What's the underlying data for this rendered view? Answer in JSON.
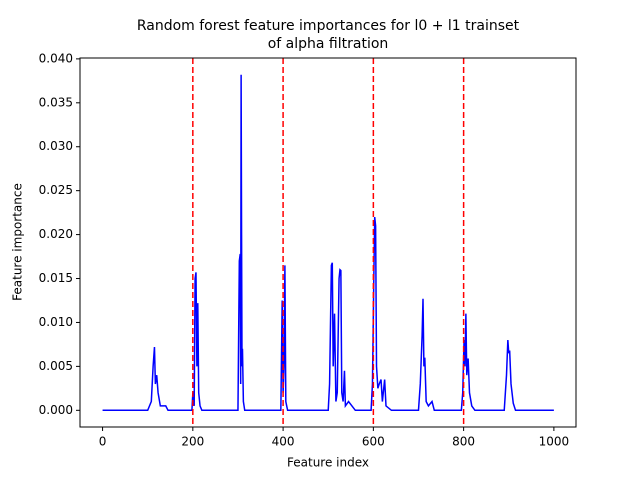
{
  "chart_data": {
    "type": "line",
    "title": [
      "Random forest feature importances for l0 + l1 trainset",
      "of alpha filtration"
    ],
    "x_label": "Feature index",
    "y_label": "Feature importance",
    "x": [
      0,
      100,
      108,
      112,
      115,
      117,
      120,
      123,
      128,
      140,
      145,
      198,
      200,
      203,
      205,
      207,
      209,
      211,
      213,
      216,
      220,
      300,
      303,
      305,
      306,
      307,
      308,
      309,
      310,
      312,
      315,
      395,
      398,
      400,
      402,
      404,
      406,
      410,
      500,
      503,
      507,
      509,
      511,
      514,
      517,
      520,
      524,
      526,
      528,
      530,
      533,
      536,
      538,
      545,
      560,
      595,
      598,
      601,
      603,
      605,
      607,
      610,
      613,
      617,
      620,
      625,
      628,
      640,
      700,
      704,
      708,
      710,
      712,
      714,
      717,
      722,
      730,
      735,
      795,
      798,
      801,
      803,
      805,
      807,
      810,
      813,
      818,
      825,
      890,
      895,
      898,
      900,
      902,
      905,
      910,
      915,
      1000
    ],
    "series": [
      {
        "color": "#0000ff",
        "values": [
          0,
          0,
          0.001,
          0.005,
          0.0072,
          0.003,
          0.004,
          0.002,
          0.0005,
          0.0005,
          0,
          0,
          0.002,
          0.0005,
          0.015,
          0.0157,
          0.005,
          0.0122,
          0.002,
          0.0005,
          0,
          0,
          0.017,
          0.0178,
          0.003,
          0.0382,
          0.02,
          0.005,
          0.007,
          0.001,
          0,
          0,
          0.0125,
          0.002,
          0.005,
          0.0165,
          0.001,
          0,
          0,
          0.003,
          0.0165,
          0.0168,
          0.005,
          0.011,
          0.001,
          0.002,
          0.015,
          0.016,
          0.0159,
          0.002,
          0.001,
          0.0045,
          0.0005,
          0.001,
          0,
          0,
          0.003,
          0.015,
          0.022,
          0.021,
          0.005,
          0.0025,
          0.003,
          0.0035,
          0.001,
          0.0035,
          0.0005,
          0,
          0,
          0.003,
          0.0085,
          0.0127,
          0.005,
          0.006,
          0.001,
          0.0005,
          0.001,
          0,
          0,
          0.002,
          0.008,
          0.005,
          0.011,
          0.004,
          0.0059,
          0.002,
          0.0005,
          0,
          0,
          0.004,
          0.008,
          0.0065,
          0.0068,
          0.003,
          0.0008,
          0,
          0
        ]
      }
    ],
    "vlines": [
      200,
      400,
      600,
      800
    ],
    "vline_color": "#ff0000",
    "xlim": [
      -50,
      1049
    ],
    "ylim": [
      -0.0019,
      0.0401
    ],
    "xticks": [
      0,
      200,
      400,
      600,
      800,
      1000
    ],
    "yticks": [
      {
        "value": 0,
        "label": "0.000"
      },
      {
        "value": 0.005,
        "label": "0.005"
      },
      {
        "value": 0.01,
        "label": "0.010"
      },
      {
        "value": 0.015,
        "label": "0.015"
      },
      {
        "value": 0.02,
        "label": "0.020"
      },
      {
        "value": 0.025,
        "label": "0.025"
      },
      {
        "value": 0.03,
        "label": "0.030"
      },
      {
        "value": 0.035,
        "label": "0.035"
      },
      {
        "value": 0.04,
        "label": "0.040"
      }
    ]
  }
}
